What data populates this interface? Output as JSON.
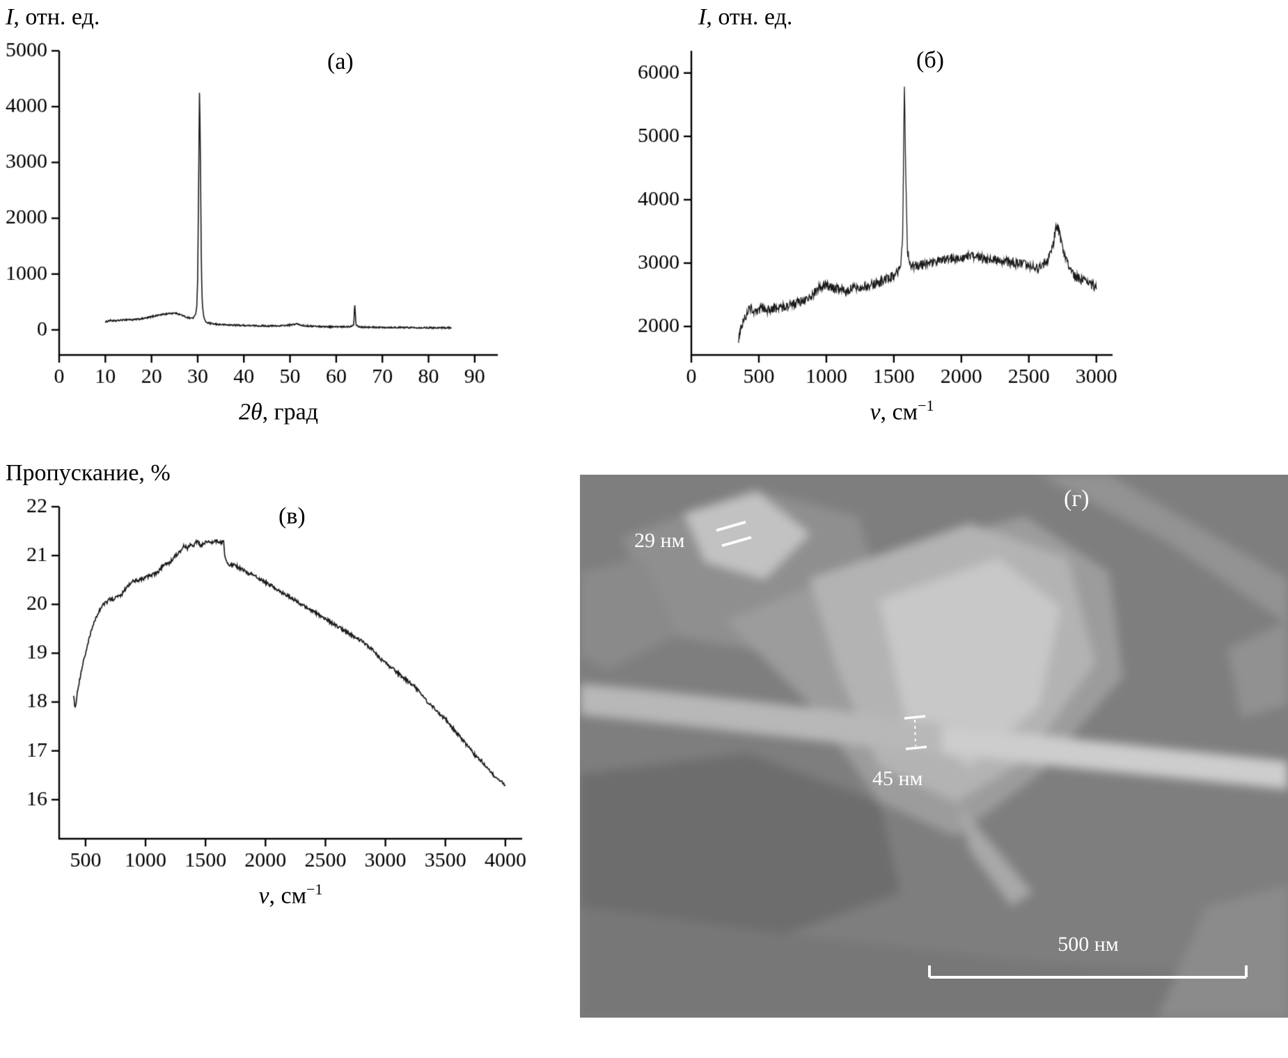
{
  "chart_data": [
    {
      "id": "xrd",
      "type": "line",
      "panel_label": "(а)",
      "xlabel": "2θ, град",
      "ylabel": "I, отн. ед.",
      "xlabel_parts": {
        "italic": "2θ",
        "rest": ", град",
        "sup": ""
      },
      "ylabel_parts": {
        "italic": "I",
        "rest": ", отн. ед."
      },
      "xlim": [
        0,
        95
      ],
      "ylim": [
        -450,
        5000
      ],
      "xticks": [
        0,
        10,
        20,
        30,
        40,
        50,
        60,
        70,
        80,
        90
      ],
      "yticks": [
        0,
        1000,
        2000,
        3000,
        4000,
        5000
      ],
      "samples": 780,
      "noise": 13,
      "line_width": 1.6,
      "line_color": "#1a1a1a",
      "points": [
        [
          10,
          140
        ],
        [
          11,
          170
        ],
        [
          12,
          160
        ],
        [
          13,
          170
        ],
        [
          14,
          180
        ],
        [
          15,
          185
        ],
        [
          16,
          180
        ],
        [
          17,
          190
        ],
        [
          18,
          200
        ],
        [
          19,
          215
        ],
        [
          20,
          235
        ],
        [
          21,
          255
        ],
        [
          22,
          270
        ],
        [
          23,
          285
        ],
        [
          24,
          295
        ],
        [
          25,
          300
        ],
        [
          25.5,
          295
        ],
        [
          26,
          280
        ],
        [
          26.5,
          265
        ],
        [
          27,
          245
        ],
        [
          27.5,
          230
        ],
        [
          28,
          215
        ],
        [
          28.5,
          210
        ],
        [
          29,
          215
        ],
        [
          29.5,
          260
        ],
        [
          29.8,
          420
        ],
        [
          30,
          900
        ],
        [
          30.2,
          2600
        ],
        [
          30.4,
          4400
        ],
        [
          30.6,
          3000
        ],
        [
          30.8,
          1100
        ],
        [
          31,
          450
        ],
        [
          31.3,
          240
        ],
        [
          31.6,
          160
        ],
        [
          32,
          130
        ],
        [
          33,
          110
        ],
        [
          34,
          100
        ],
        [
          35,
          95
        ],
        [
          36,
          90
        ],
        [
          38,
          85
        ],
        [
          40,
          80
        ],
        [
          42,
          75
        ],
        [
          44,
          72
        ],
        [
          46,
          70
        ],
        [
          48,
          72
        ],
        [
          50,
          85
        ],
        [
          51,
          100
        ],
        [
          51.5,
          110
        ],
        [
          52,
          90
        ],
        [
          53,
          75
        ],
        [
          54,
          70
        ],
        [
          56,
          62
        ],
        [
          58,
          58
        ],
        [
          60,
          55
        ],
        [
          61,
          52
        ],
        [
          62,
          55
        ],
        [
          63,
          60
        ],
        [
          63.8,
          90
        ],
        [
          64,
          500
        ],
        [
          64.3,
          90
        ],
        [
          65,
          55
        ],
        [
          66,
          50
        ],
        [
          68,
          48
        ],
        [
          70,
          45
        ],
        [
          72,
          44
        ],
        [
          74,
          42
        ],
        [
          76,
          42
        ],
        [
          78,
          40
        ],
        [
          80,
          40
        ],
        [
          82,
          38
        ],
        [
          84,
          38
        ],
        [
          85,
          38
        ]
      ]
    },
    {
      "id": "raman",
      "type": "line",
      "panel_label": "(б)",
      "xlabel": "ν, см⁻¹",
      "ylabel": "I, отн. ед.",
      "xlabel_parts": {
        "italic": "ν",
        "rest": ", см",
        "sup": "−1"
      },
      "ylabel_parts": {
        "italic": "I",
        "rest": ", отн. ед."
      },
      "xlim": [
        0,
        3120
      ],
      "ylim": [
        1550,
        6350
      ],
      "xticks": [
        0,
        500,
        1000,
        1500,
        2000,
        2500,
        3000
      ],
      "yticks": [
        2000,
        3000,
        4000,
        5000,
        6000
      ],
      "samples": 820,
      "noise": 75,
      "line_width": 1.3,
      "line_color": "#1a1a1a",
      "points": [
        [
          350,
          1800
        ],
        [
          360,
          1950
        ],
        [
          380,
          2050
        ],
        [
          400,
          2150
        ],
        [
          420,
          2250
        ],
        [
          440,
          2300
        ],
        [
          460,
          2250
        ],
        [
          480,
          2200
        ],
        [
          500,
          2250
        ],
        [
          520,
          2300
        ],
        [
          550,
          2280
        ],
        [
          580,
          2250
        ],
        [
          620,
          2280
        ],
        [
          660,
          2300
        ],
        [
          700,
          2320
        ],
        [
          750,
          2350
        ],
        [
          800,
          2380
        ],
        [
          850,
          2420
        ],
        [
          900,
          2500
        ],
        [
          950,
          2620
        ],
        [
          980,
          2650
        ],
        [
          1000,
          2640
        ],
        [
          1050,
          2600
        ],
        [
          1100,
          2580
        ],
        [
          1150,
          2580
        ],
        [
          1200,
          2600
        ],
        [
          1250,
          2620
        ],
        [
          1300,
          2640
        ],
        [
          1350,
          2660
        ],
        [
          1400,
          2700
        ],
        [
          1450,
          2750
        ],
        [
          1500,
          2800
        ],
        [
          1530,
          2850
        ],
        [
          1550,
          2950
        ],
        [
          1565,
          3400
        ],
        [
          1578,
          5780
        ],
        [
          1590,
          4200
        ],
        [
          1600,
          3200
        ],
        [
          1620,
          3000
        ],
        [
          1650,
          2950
        ],
        [
          1700,
          2970
        ],
        [
          1750,
          3000
        ],
        [
          1800,
          3020
        ],
        [
          1850,
          3050
        ],
        [
          1900,
          3070
        ],
        [
          1950,
          3080
        ],
        [
          2000,
          3090
        ],
        [
          2050,
          3100
        ],
        [
          2100,
          3090
        ],
        [
          2150,
          3080
        ],
        [
          2200,
          3060
        ],
        [
          2250,
          3050
        ],
        [
          2300,
          3040
        ],
        [
          2350,
          3020
        ],
        [
          2400,
          3000
        ],
        [
          2450,
          2980
        ],
        [
          2500,
          2950
        ],
        [
          2550,
          2920
        ],
        [
          2600,
          2950
        ],
        [
          2640,
          3050
        ],
        [
          2680,
          3300
        ],
        [
          2700,
          3560
        ],
        [
          2720,
          3520
        ],
        [
          2750,
          3250
        ],
        [
          2780,
          3050
        ],
        [
          2800,
          2900
        ],
        [
          2850,
          2780
        ],
        [
          2900,
          2720
        ],
        [
          2950,
          2680
        ],
        [
          3000,
          2600
        ]
      ]
    },
    {
      "id": "ir-transmission",
      "type": "line",
      "panel_label": "(в)",
      "xlabel": "ν, см⁻¹",
      "ylabel": "Пропускание, %",
      "xlabel_parts": {
        "italic": "ν",
        "rest": ", см",
        "sup": "−1"
      },
      "ylabel_parts": {
        "italic": "",
        "rest": "Пропускание, %"
      },
      "xlim": [
        280,
        4140
      ],
      "ylim": [
        15.2,
        22
      ],
      "xticks": [
        500,
        1000,
        1500,
        2000,
        2500,
        3000,
        3500,
        4000
      ],
      "yticks": [
        16,
        17,
        18,
        19,
        20,
        21,
        22
      ],
      "samples": 800,
      "noise": 0.035,
      "line_width": 1.7,
      "line_color": "#1a1a1a",
      "points": [
        [
          400,
          18.15
        ],
        [
          410,
          17.9
        ],
        [
          420,
          17.95
        ],
        [
          430,
          18.2
        ],
        [
          450,
          18.45
        ],
        [
          470,
          18.7
        ],
        [
          500,
          19.0
        ],
        [
          530,
          19.3
        ],
        [
          560,
          19.55
        ],
        [
          590,
          19.75
        ],
        [
          620,
          19.9
        ],
        [
          650,
          20.0
        ],
        [
          680,
          20.05
        ],
        [
          700,
          20.1
        ],
        [
          730,
          20.1
        ],
        [
          760,
          20.15
        ],
        [
          800,
          20.2
        ],
        [
          840,
          20.35
        ],
        [
          880,
          20.45
        ],
        [
          920,
          20.5
        ],
        [
          960,
          20.5
        ],
        [
          1000,
          20.55
        ],
        [
          1050,
          20.6
        ],
        [
          1100,
          20.65
        ],
        [
          1150,
          20.8
        ],
        [
          1200,
          20.85
        ],
        [
          1250,
          21.0
        ],
        [
          1300,
          21.1
        ],
        [
          1320,
          21.2
        ],
        [
          1350,
          21.15
        ],
        [
          1380,
          21.25
        ],
        [
          1400,
          21.2
        ],
        [
          1430,
          21.3
        ],
        [
          1460,
          21.2
        ],
        [
          1490,
          21.25
        ],
        [
          1520,
          21.3
        ],
        [
          1550,
          21.25
        ],
        [
          1580,
          21.3
        ],
        [
          1600,
          21.3
        ],
        [
          1620,
          21.25
        ],
        [
          1650,
          21.3
        ],
        [
          1660,
          21.0
        ],
        [
          1680,
          20.85
        ],
        [
          1700,
          20.8
        ],
        [
          1730,
          20.82
        ],
        [
          1760,
          20.78
        ],
        [
          1800,
          20.72
        ],
        [
          1850,
          20.65
        ],
        [
          1900,
          20.6
        ],
        [
          1950,
          20.52
        ],
        [
          2000,
          20.45
        ],
        [
          2050,
          20.38
        ],
        [
          2100,
          20.3
        ],
        [
          2150,
          20.22
        ],
        [
          2200,
          20.15
        ],
        [
          2250,
          20.08
        ],
        [
          2300,
          20.0
        ],
        [
          2350,
          19.92
        ],
        [
          2400,
          19.85
        ],
        [
          2450,
          19.78
        ],
        [
          2500,
          19.7
        ],
        [
          2550,
          19.62
        ],
        [
          2600,
          19.55
        ],
        [
          2650,
          19.48
        ],
        [
          2700,
          19.4
        ],
        [
          2750,
          19.32
        ],
        [
          2800,
          19.25
        ],
        [
          2850,
          19.15
        ],
        [
          2900,
          19.05
        ],
        [
          2920,
          19.0
        ],
        [
          2950,
          18.9
        ],
        [
          3000,
          18.8
        ],
        [
          3050,
          18.7
        ],
        [
          3100,
          18.6
        ],
        [
          3150,
          18.5
        ],
        [
          3200,
          18.4
        ],
        [
          3250,
          18.3
        ],
        [
          3300,
          18.15
        ],
        [
          3350,
          18.0
        ],
        [
          3400,
          17.9
        ],
        [
          3450,
          17.75
        ],
        [
          3500,
          17.65
        ],
        [
          3550,
          17.5
        ],
        [
          3600,
          17.35
        ],
        [
          3650,
          17.2
        ],
        [
          3700,
          17.05
        ],
        [
          3750,
          16.9
        ],
        [
          3800,
          16.8
        ],
        [
          3850,
          16.65
        ],
        [
          3900,
          16.5
        ],
        [
          3950,
          16.4
        ],
        [
          4000,
          16.3
        ]
      ]
    }
  ],
  "sem": {
    "panel_label": "(г)",
    "annotation_29": "29 нм",
    "annotation_45": "45 нм",
    "scale_label": "500 нм"
  }
}
